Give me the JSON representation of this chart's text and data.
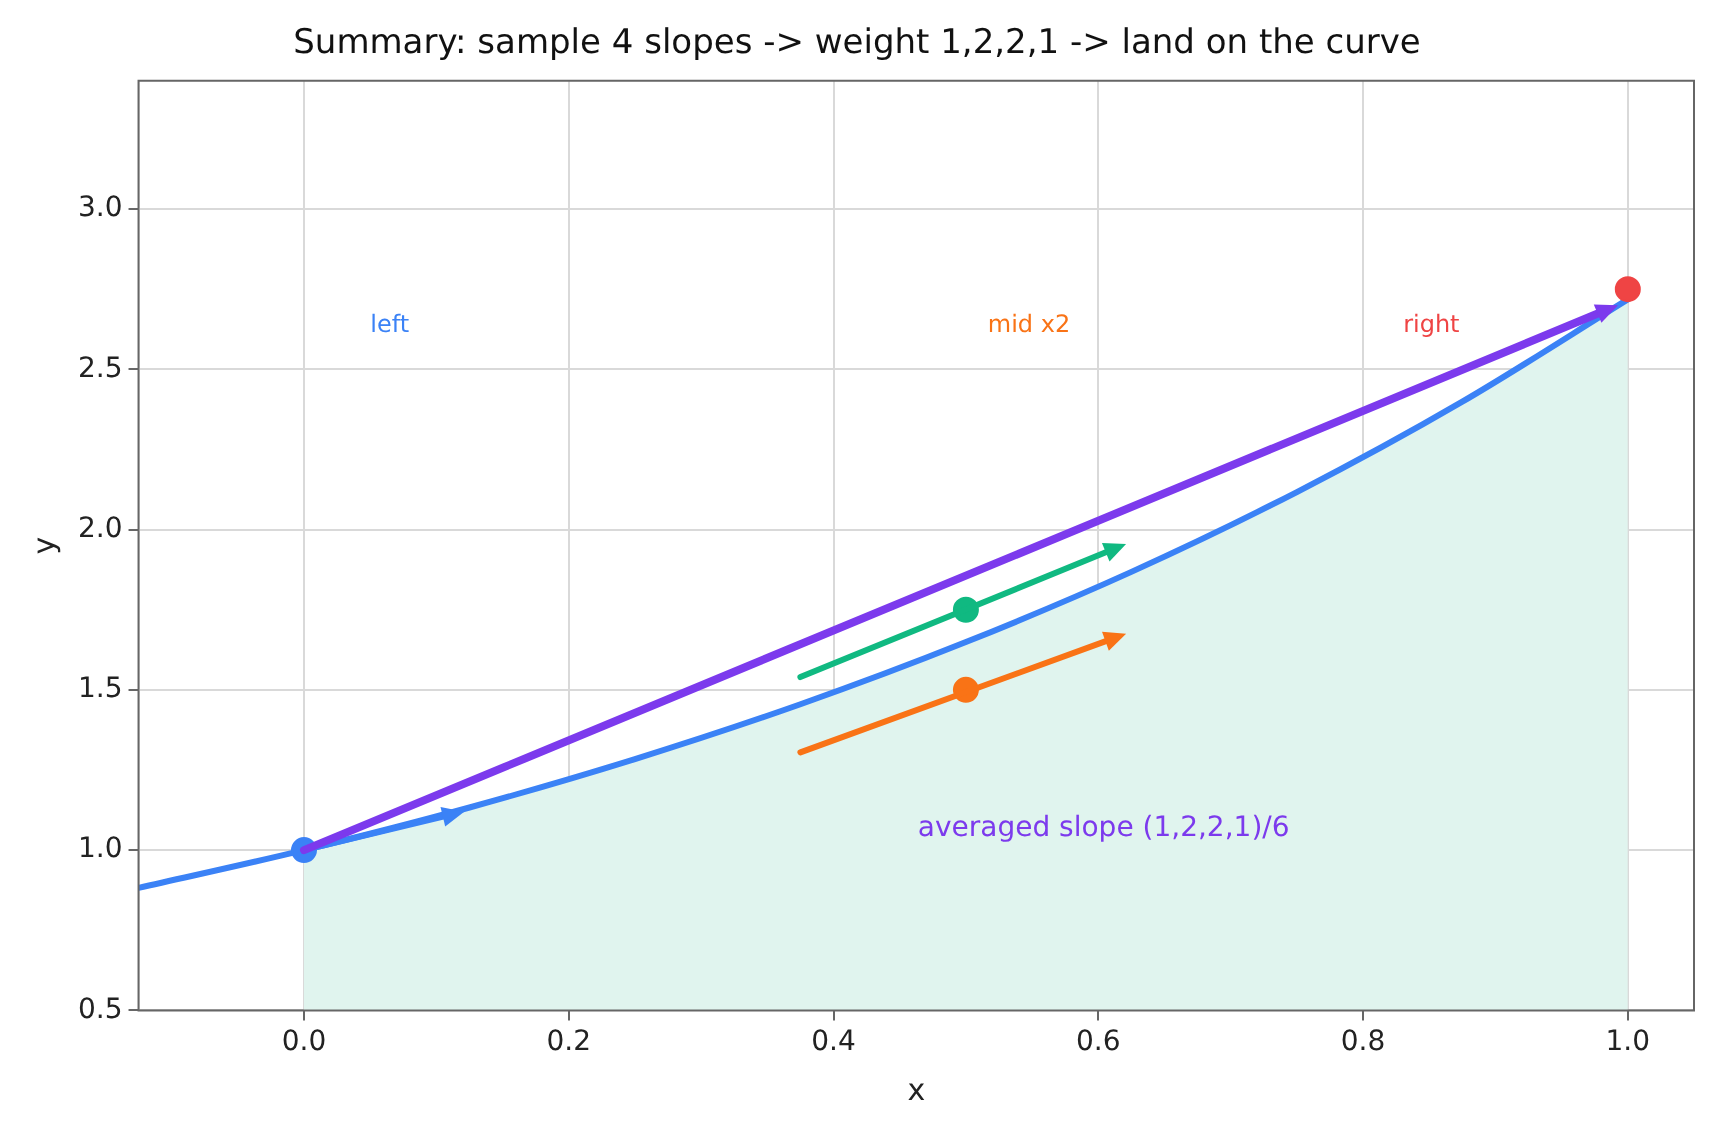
{
  "chart_data": {
    "type": "line",
    "title": "Summary: sample 4 slopes -> weight 1,2,2,1 -> land on the curve",
    "xlabel": "x",
    "ylabel": "y",
    "xlim": [
      -0.125,
      1.05
    ],
    "xticks": [
      {
        "value": 0,
        "label": "0.0"
      },
      {
        "value": 0.2,
        "label": "0.2"
      },
      {
        "value": 0.4,
        "label": "0.4"
      },
      {
        "value": 0.6,
        "label": "0.6"
      },
      {
        "value": 0.8,
        "label": "0.8"
      },
      {
        "value": 1,
        "label": "1.0"
      }
    ],
    "ylim": [
      0.5,
      3.4
    ],
    "yticks": [
      {
        "value": 0.5,
        "label": "0.5"
      },
      {
        "value": 1,
        "label": "1.0"
      },
      {
        "value": 1.5,
        "label": "1.5"
      },
      {
        "value": 2,
        "label": "2.0"
      },
      {
        "value": 2.5,
        "label": "2.5"
      },
      {
        "value": 3,
        "label": "3.0"
      }
    ],
    "grid": true,
    "series": [
      {
        "type": "area",
        "color": "#e0f4ee",
        "x": [
          0,
          0.125,
          0.25,
          0.375,
          0.5,
          0.625,
          0.75,
          0.875,
          1
        ],
        "values": [
          1.0,
          1.133,
          1.284,
          1.455,
          1.649,
          1.868,
          2.117,
          2.399,
          2.718
        ]
      },
      {
        "color": "#3b82f6",
        "marker": "none",
        "x": [
          -0.125,
          0,
          0.125,
          0.25,
          0.375,
          0.5,
          0.625,
          0.75,
          0.875,
          1
        ],
        "values": [
          0.882,
          1.0,
          1.133,
          1.284,
          1.455,
          1.649,
          1.868,
          2.117,
          2.399,
          2.718
        ]
      },
      {
        "type": "scatter",
        "color": "#3b82f6",
        "marker": "circle",
        "x": [
          0
        ],
        "values": [
          1
        ]
      },
      {
        "type": "scatter",
        "color": "#10b981",
        "marker": "circle",
        "x": [
          0.5
        ],
        "values": [
          1.75
        ]
      },
      {
        "type": "scatter",
        "color": "#f97316",
        "marker": "circle",
        "x": [
          0.5
        ],
        "values": [
          1.5
        ]
      },
      {
        "type": "scatter",
        "color": "#ef4444",
        "marker": "circle",
        "x": [
          1
        ],
        "values": [
          2.75
        ]
      }
    ],
    "annotations": [
      "left",
      "mid x2",
      "right",
      "averaged slope (1,2,2,1)/6"
    ]
  }
}
